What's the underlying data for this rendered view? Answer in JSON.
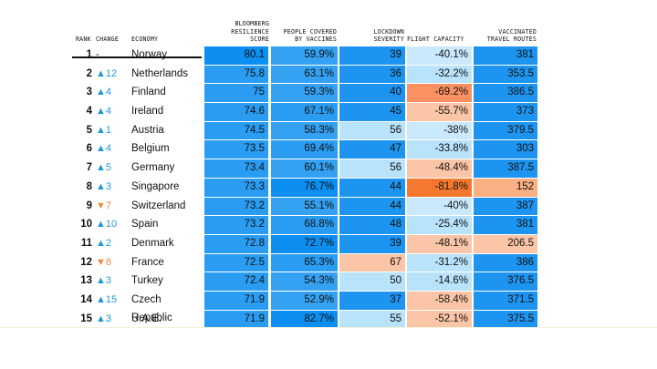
{
  "headers": {
    "rank": "RANK",
    "change": "CHANGE",
    "economy": "ECONOMY",
    "score": "BLOOMBERG\nRESILIENCE\nSCORE",
    "vaccines": "PEOPLE COVERED\nBY VACCINES",
    "lockdown": "LOCKDOWN\nSEVERITY",
    "flight": "FLIGHT CAPACITY",
    "travel": "VACCINATED\nTRAVEL ROUTES"
  },
  "chart_data": {
    "type": "table",
    "columns": [
      "RANK",
      "CHANGE",
      "ECONOMY",
      "BLOOMBERG RESILIENCE SCORE",
      "PEOPLE COVERED BY VACCINES",
      "LOCKDOWN SEVERITY",
      "FLIGHT CAPACITY",
      "VACCINATED TRAVEL ROUTES"
    ],
    "rows": [
      {
        "rank": "1",
        "change": "-",
        "dir": "none",
        "economy": "Norway",
        "score": "80.1",
        "vaccines": "59.9%",
        "lockdown": "39",
        "flight": "-40.1%",
        "travel": "381"
      },
      {
        "rank": "2",
        "change": "▲12",
        "dir": "up",
        "economy": "Netherlands",
        "score": "75.8",
        "vaccines": "63.1%",
        "lockdown": "36",
        "flight": "-32.2%",
        "travel": "353.5"
      },
      {
        "rank": "3",
        "change": "▲4",
        "dir": "up",
        "economy": "Finland",
        "score": "75",
        "vaccines": "59.3%",
        "lockdown": "40",
        "flight": "-69.2%",
        "travel": "386.5"
      },
      {
        "rank": "4",
        "change": "▲4",
        "dir": "up",
        "economy": "Ireland",
        "score": "74.6",
        "vaccines": "67.1%",
        "lockdown": "45",
        "flight": "-55.7%",
        "travel": "373"
      },
      {
        "rank": "5",
        "change": "▲1",
        "dir": "up",
        "economy": "Austria",
        "score": "74.5",
        "vaccines": "58.3%",
        "lockdown": "56",
        "flight": "-38%",
        "travel": "379.5"
      },
      {
        "rank": "6",
        "change": "▲4",
        "dir": "up",
        "economy": "Belgium",
        "score": "73.5",
        "vaccines": "69.4%",
        "lockdown": "47",
        "flight": "-33.8%",
        "travel": "303"
      },
      {
        "rank": "7",
        "change": "▲5",
        "dir": "up",
        "economy": "Germany",
        "score": "73.4",
        "vaccines": "60.1%",
        "lockdown": "56",
        "flight": "-48.4%",
        "travel": "387.5"
      },
      {
        "rank": "8",
        "change": "▲3",
        "dir": "up",
        "economy": "Singapore",
        "score": "73.3",
        "vaccines": "76.7%",
        "lockdown": "44",
        "flight": "-81.8%",
        "travel": "152"
      },
      {
        "rank": "9",
        "change": "▼7",
        "dir": "down",
        "economy": "Switzerland",
        "score": "73.2",
        "vaccines": "55.1%",
        "lockdown": "44",
        "flight": "-40%",
        "travel": "387"
      },
      {
        "rank": "10",
        "change": "▲10",
        "dir": "up",
        "economy": "Spain",
        "score": "73.2",
        "vaccines": "68.8%",
        "lockdown": "48",
        "flight": "-25.4%",
        "travel": "381"
      },
      {
        "rank": "11",
        "change": "▲2",
        "dir": "up",
        "economy": "Denmark",
        "score": "72.8",
        "vaccines": "72.7%",
        "lockdown": "39",
        "flight": "-48.1%",
        "travel": "206.5"
      },
      {
        "rank": "12",
        "change": "▼8",
        "dir": "down",
        "economy": "France",
        "score": "72.5",
        "vaccines": "65.3%",
        "lockdown": "67",
        "flight": "-31.2%",
        "travel": "386"
      },
      {
        "rank": "13",
        "change": "▲3",
        "dir": "up",
        "economy": "Turkey",
        "score": "72.4",
        "vaccines": "54.3%",
        "lockdown": "50",
        "flight": "-14.6%",
        "travel": "376.5"
      },
      {
        "rank": "14",
        "change": "▲15",
        "dir": "up",
        "economy": "Czech Republic",
        "score": "71.9",
        "vaccines": "52.9%",
        "lockdown": "37",
        "flight": "-58.4%",
        "travel": "371.5"
      },
      {
        "rank": "15",
        "change": "▲3",
        "dir": "up",
        "economy": "U.A.E.",
        "score": "71.9",
        "vaccines": "82.7%",
        "lockdown": "55",
        "flight": "-52.1%",
        "travel": "375.5"
      }
    ],
    "cell_colors": {
      "score": [
        "#0c8ff0",
        "#2a9df2",
        "#2a9df2",
        "#2a9df2",
        "#2a9df2",
        "#2a9df2",
        "#2a9df2",
        "#2a9df2",
        "#2a9df2",
        "#2a9df2",
        "#2a9df2",
        "#2a9df2",
        "#2a9df2",
        "#2a9df2",
        "#2a9df2"
      ],
      "vaccines": [
        "#34a1f2",
        "#34a1f2",
        "#34a1f2",
        "#2a9df2",
        "#34a1f2",
        "#2a9df2",
        "#34a1f2",
        "#0c8ff0",
        "#34a1f2",
        "#2a9df2",
        "#0c8ff0",
        "#2a9df2",
        "#34a1f2",
        "#34a1f2",
        "#0c8ff0"
      ],
      "lockdown": [
        "#1d95f0",
        "#1d95f0",
        "#1d95f0",
        "#1d95f0",
        "#b9e2fb",
        "#1d95f0",
        "#b9e2fb",
        "#1d95f0",
        "#1d95f0",
        "#1d95f0",
        "#1d95f0",
        "#fbc6a7",
        "#b9e2fb",
        "#1d95f0",
        "#b9e2fb"
      ],
      "flight": [
        "#cbe9fd",
        "#b9e2fb",
        "#fb9061",
        "#fbc6a7",
        "#cbe9fd",
        "#b9e2fb",
        "#fbc6a7",
        "#f4782f",
        "#cbe9fd",
        "#b9e2fb",
        "#fbc6a7",
        "#b9e2fb",
        "#b9e2fb",
        "#fbc6a7",
        "#fbc6a7"
      ],
      "travel": [
        "#1d95f0",
        "#1d95f0",
        "#1d95f0",
        "#1d95f0",
        "#1d95f0",
        "#1d95f0",
        "#1d95f0",
        "#fbb084",
        "#1d95f0",
        "#1d95f0",
        "#fbc6a7",
        "#1d95f0",
        "#1d95f0",
        "#1d95f0",
        "#1d95f0"
      ]
    }
  }
}
